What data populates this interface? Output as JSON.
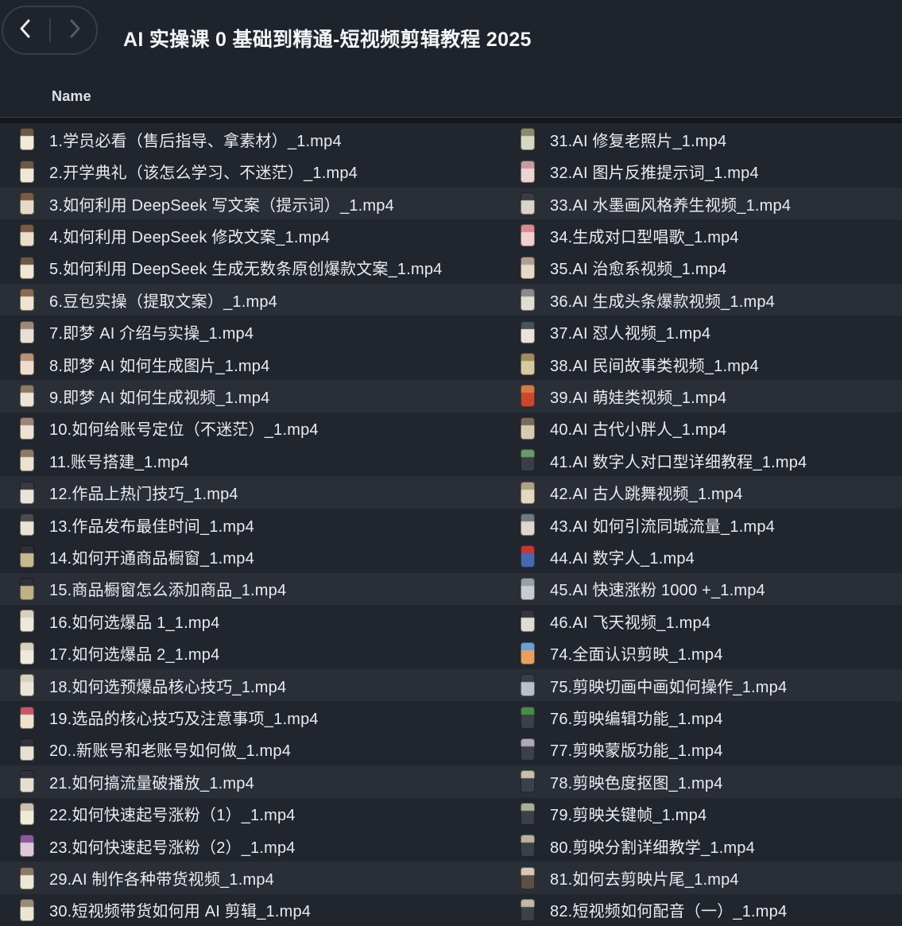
{
  "topbar": {
    "title": "AI 实操课 0 基础到精通-短视频剪辑教程 2025",
    "back_icon": "chevron-left",
    "forward_icon": "chevron-right"
  },
  "list_header": {
    "name_label": "Name"
  },
  "colors": {
    "page_bg": "#1f232b",
    "row_dark": "#21252d",
    "row_light": "#2a2e37",
    "header_divider": "#394049",
    "text": "#eaecef",
    "title_text": "#f2f4f6",
    "back_chevron": "#e9ebef",
    "forward_chevron": "#565b64"
  },
  "list": {
    "left": [
      {
        "label": "1.学员必看（售后指导、拿素材）_1.mp4",
        "thumb": [
          "#6b5a48",
          "#f2ead8"
        ]
      },
      {
        "label": "2.开学典礼（该怎么学习、不迷茫）_1.mp4",
        "thumb": [
          "#6b5a48",
          "#f0e8d6"
        ]
      },
      {
        "label": "3.如何利用 DeepSeek 写文案（提示词）_1.mp4",
        "thumb": [
          "#7a5a44",
          "#e8d8c8"
        ]
      },
      {
        "label": "4.如何利用 DeepSeek 修改文案_1.mp4",
        "thumb": [
          "#7a5a44",
          "#ecdccc"
        ]
      },
      {
        "label": "5.如何利用 DeepSeek 生成无数条原创爆款文案_1.mp4",
        "thumb": [
          "#6b5a48",
          "#efe6d4"
        ]
      },
      {
        "label": "6.豆包实操（提取文案）_1.mp4",
        "thumb": [
          "#8a6a50",
          "#f0e4d0"
        ]
      },
      {
        "label": "7.即梦 AI 介绍与实操_1.mp4",
        "thumb": [
          "#9a8a78",
          "#e8e0d4"
        ]
      },
      {
        "label": "8.即梦 AI 如何生成图片_1.mp4",
        "thumb": [
          "#b8907a",
          "#f0dccc"
        ]
      },
      {
        "label": "9.即梦 AI 如何生成视频_1.mp4",
        "thumb": [
          "#8a7a68",
          "#ece4d6"
        ]
      },
      {
        "label": "10.如何给账号定位（不迷茫）_1.mp4",
        "thumb": [
          "#9a8578",
          "#eee2d2"
        ]
      },
      {
        "label": "11.账号搭建_1.mp4",
        "thumb": [
          "#8a7a6a",
          "#ece2d2"
        ]
      },
      {
        "label": "12.作品上热门技巧_1.mp4",
        "thumb": [
          "#3a3a42",
          "#e8e4da"
        ]
      },
      {
        "label": "13.作品发布最佳时间_1.mp4",
        "thumb": [
          "#4a4a52",
          "#eae2d4"
        ]
      },
      {
        "label": "14.如何开通商品橱窗_1.mp4",
        "thumb": [
          "#2e3038",
          "#c8b890"
        ]
      },
      {
        "label": "15.商品橱窗怎么添加商品_1.mp4",
        "thumb": [
          "#2e3038",
          "#c0b088"
        ]
      },
      {
        "label": "16.如何选爆品 1_1.mp4",
        "thumb": [
          "#d8d0c0",
          "#efe9da"
        ]
      },
      {
        "label": "17.如何选爆品 2_1.mp4",
        "thumb": [
          "#d8d0c0",
          "#efe9da"
        ]
      },
      {
        "label": "18.如何选预爆品核心技巧_1.mp4",
        "thumb": [
          "#d8d0c0",
          "#ece6d6"
        ]
      },
      {
        "label": "19.选品的核心技巧及注意事项_1.mp4",
        "thumb": [
          "#c05868",
          "#f0e0d0"
        ]
      },
      {
        "label": "20..新账号和老账号如何做_1.mp4",
        "thumb": [
          "#30323a",
          "#e8e0d2"
        ]
      },
      {
        "label": "21.如何搞流量破播放_1.mp4",
        "thumb": [
          "#30323a",
          "#e6ded0"
        ]
      },
      {
        "label": "22.如何快速起号涨粉（1）_1.mp4",
        "thumb": [
          "#c8c0b0",
          "#f0ead8"
        ]
      },
      {
        "label": "23.如何快速起号涨粉（2）_1.mp4",
        "thumb": [
          "#8a5a9a",
          "#e0c8d8"
        ]
      },
      {
        "label": "29.AI 制作各种带货视频_1.mp4",
        "thumb": [
          "#8a7a68",
          "#eee6d6"
        ]
      },
      {
        "label": "30.短视频带货如何用 AI 剪辑_1.mp4",
        "thumb": [
          "#9a8a78",
          "#ece4d4"
        ]
      }
    ],
    "right": [
      {
        "label": "31.AI 修复老照片_1.mp4",
        "thumb": [
          "#8a8a72",
          "#d8d8c2"
        ]
      },
      {
        "label": "32.AI 图片反推提示词_1.mp4",
        "thumb": [
          "#c89aa2",
          "#ecd4d0"
        ]
      },
      {
        "label": "33.AI 水墨画风格养生视频_1.mp4",
        "thumb": [
          "#3a3c44",
          "#d8d4c8"
        ]
      },
      {
        "label": "34.生成对口型唱歌_1.mp4",
        "thumb": [
          "#d88a92",
          "#f0d0d0"
        ]
      },
      {
        "label": "35.AI 治愈系视频_1.mp4",
        "thumb": [
          "#b0a090",
          "#e8d8c8"
        ]
      },
      {
        "label": "36.AI 生成头条爆款视频_1.mp4",
        "thumb": [
          "#8a8a8a",
          "#e0ddd5"
        ]
      },
      {
        "label": "37.AI 怼人视频_1.mp4",
        "thumb": [
          "#48525e",
          "#e8e4da"
        ]
      },
      {
        "label": "38.AI 民间故事类视频_1.mp4",
        "thumb": [
          "#a08a60",
          "#d8c8a0"
        ]
      },
      {
        "label": "39.AI 萌娃类视频_1.mp4",
        "thumb": [
          "#d87a48",
          "#c84830"
        ]
      },
      {
        "label": "40.AI 古代小胖人_1.mp4",
        "thumb": [
          "#7a6a58",
          "#d8cab4"
        ]
      },
      {
        "label": "41.AI 数字人对口型详细教程_1.mp4",
        "thumb": [
          "#6a9a6a",
          "#3a3e46"
        ]
      },
      {
        "label": "42.AI 古人跳舞视频_1.mp4",
        "thumb": [
          "#b0a088",
          "#e4d8c0"
        ]
      },
      {
        "label": "43.AI 如何引流同城流量_1.mp4",
        "thumb": [
          "#707a84",
          "#dcd8ce"
        ]
      },
      {
        "label": "44.AI 数字人_1.mp4",
        "thumb": [
          "#c03838",
          "#4868b0"
        ]
      },
      {
        "label": "45.AI 快速涨粉 1000 +_1.mp4",
        "thumb": [
          "#9aa0a8",
          "#c8ccd0"
        ]
      },
      {
        "label": "46.AI 飞天视频_1.mp4",
        "thumb": [
          "#33363e",
          "#e0ddd5"
        ]
      },
      {
        "label": "74.全面认识剪映_1.mp4",
        "thumb": [
          "#6aa0d8",
          "#e8a060"
        ]
      },
      {
        "label": "75.剪映切画中画如何操作_1.mp4",
        "thumb": [
          "#3a3e46",
          "#b8c0c8"
        ]
      },
      {
        "label": "76.剪映编辑功能_1.mp4",
        "thumb": [
          "#4a8a4a",
          "#3c4048"
        ]
      },
      {
        "label": "77.剪映蒙版功能_1.mp4",
        "thumb": [
          "#b0a8b8",
          "#3c4048"
        ]
      },
      {
        "label": "78.剪映色度抠图_1.mp4",
        "thumb": [
          "#c8c0a8",
          "#3c4048"
        ]
      },
      {
        "label": "79.剪映关键帧_1.mp4",
        "thumb": [
          "#a8b098",
          "#3c4048"
        ]
      },
      {
        "label": "80.剪映分割详细教学_1.mp4",
        "thumb": [
          "#b8b0a0",
          "#3c4048"
        ]
      },
      {
        "label": "81.如何去剪映片尾_1.mp4",
        "thumb": [
          "#d8c8b8",
          "#5a5048"
        ]
      },
      {
        "label": "82.短视频如何配音（一）_1.mp4",
        "thumb": [
          "#c0b8a8",
          "#3c4048"
        ]
      }
    ]
  }
}
